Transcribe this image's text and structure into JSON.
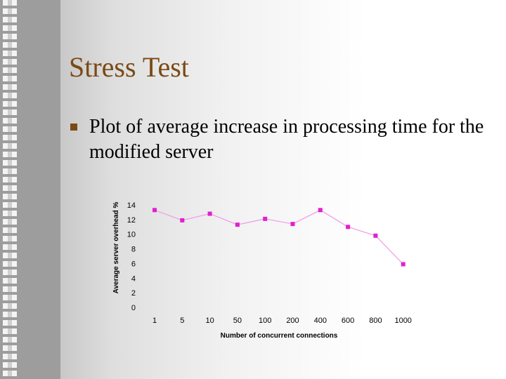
{
  "slide": {
    "title": "Stress Test",
    "bullet_text": "Plot of average increase in processing time for the modified server"
  },
  "colors": {
    "title": "#7a4a16",
    "bullet": "#7a4a16",
    "series": "#f0a0e8",
    "marker": "#e020d0"
  },
  "chart_data": {
    "type": "line",
    "categories": [
      "1",
      "5",
      "10",
      "50",
      "100",
      "200",
      "400",
      "600",
      "800",
      "1000"
    ],
    "series": [
      {
        "values": [
          13.3,
          11.9,
          12.8,
          11.3,
          12.1,
          11.4,
          13.3,
          11.0,
          9.8,
          5.9
        ]
      }
    ],
    "xlabel": "Number of concurrent connections",
    "ylabel": "Average server overhead %",
    "ylim": [
      0,
      14
    ],
    "yticks": [
      0,
      2,
      4,
      6,
      8,
      10,
      12,
      14
    ],
    "grid": false,
    "legend": "none"
  }
}
